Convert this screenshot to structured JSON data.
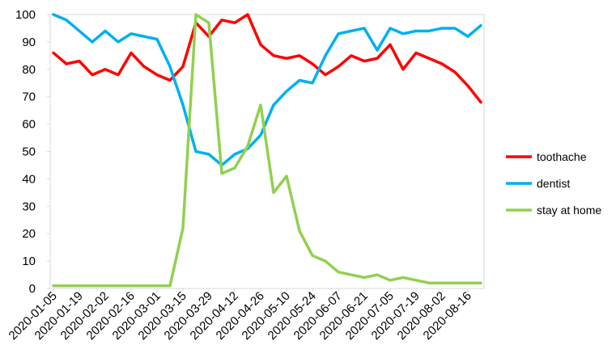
{
  "chart_data": {
    "type": "line",
    "title": "",
    "xlabel": "",
    "ylabel": "",
    "ylim": [
      0,
      100
    ],
    "yticks": [
      0,
      10,
      20,
      30,
      40,
      50,
      60,
      70,
      80,
      90,
      100
    ],
    "grid": false,
    "legend_position": "right",
    "x": [
      "2020-01-05",
      "2020-01-12",
      "2020-01-19",
      "2020-01-26",
      "2020-02-02",
      "2020-02-09",
      "2020-02-16",
      "2020-02-23",
      "2020-03-01",
      "2020-03-08",
      "2020-03-15",
      "2020-03-22",
      "2020-03-29",
      "2020-04-05",
      "2020-04-12",
      "2020-04-19",
      "2020-04-26",
      "2020-05-03",
      "2020-05-10",
      "2020-05-17",
      "2020-05-24",
      "2020-05-31",
      "2020-06-07",
      "2020-06-14",
      "2020-06-21",
      "2020-06-28",
      "2020-07-05",
      "2020-07-12",
      "2020-07-19",
      "2020-07-26",
      "2020-08-02",
      "2020-08-09",
      "2020-08-16",
      "2020-08-23"
    ],
    "x_tick_labels": [
      "2020-01-05",
      "2020-01-19",
      "2020-02-02",
      "2020-02-16",
      "2020-03-01",
      "2020-03-15",
      "2020-03-29",
      "2020-04-12",
      "2020-04-26",
      "2020-05-10",
      "2020-05-24",
      "2020-06-07",
      "2020-06-21",
      "2020-07-05",
      "2020-07-19",
      "2020-08-02",
      "2020-08-16"
    ],
    "series": [
      {
        "name": "toothache",
        "color": "#ff0000",
        "values": [
          86,
          82,
          83,
          78,
          80,
          78,
          86,
          81,
          78,
          76,
          81,
          97,
          92,
          98,
          97,
          100,
          89,
          85,
          84,
          85,
          82,
          78,
          81,
          85,
          83,
          84,
          89,
          80,
          86,
          84,
          82,
          79,
          74,
          68
        ]
      },
      {
        "name": "dentist",
        "color": "#00b0f0",
        "values": [
          100,
          98,
          94,
          90,
          94,
          90,
          93,
          92,
          91,
          81,
          67,
          50,
          49,
          45,
          49,
          51,
          56,
          67,
          72,
          76,
          75,
          85,
          93,
          94,
          95,
          87,
          95,
          93,
          94,
          94,
          95,
          95,
          92,
          96
        ]
      },
      {
        "name": "stay at home",
        "color": "#92d050",
        "values": [
          1,
          1,
          1,
          1,
          1,
          1,
          1,
          1,
          1,
          1,
          22,
          100,
          97,
          42,
          44,
          52,
          67,
          35,
          41,
          21,
          12,
          10,
          6,
          5,
          4,
          5,
          3,
          4,
          3,
          2,
          2,
          2,
          2,
          2
        ]
      }
    ]
  }
}
